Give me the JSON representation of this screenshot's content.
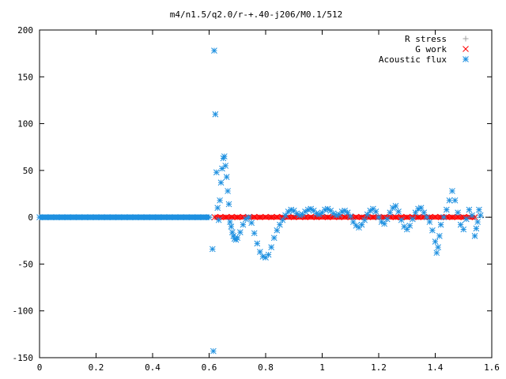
{
  "chart_data": {
    "type": "scatter",
    "title": "m4/n1.5/q2.0/r-+.40-j206/M0.1/512",
    "xlabel": "",
    "ylabel": "",
    "xlim": [
      0,
      1.6
    ],
    "ylim": [
      -150,
      200
    ],
    "x_ticks": [
      0,
      0.2,
      0.4,
      0.6,
      0.8,
      1,
      1.2,
      1.4,
      1.6
    ],
    "x_tick_labels": [
      "0",
      "0.2",
      "0.4",
      "0.6",
      "0.8",
      "1",
      "1.2",
      "1.4",
      "1.6"
    ],
    "y_ticks": [
      -150,
      -100,
      -50,
      0,
      50,
      100,
      150,
      200
    ],
    "y_tick_labels": [
      "-150",
      "-100",
      "-50",
      "0",
      "50",
      "100",
      "150",
      "200"
    ],
    "grid": false,
    "legend_position": "top-right",
    "series": [
      {
        "name": "R stress",
        "marker": "+",
        "color": "#a0a0a0",
        "points": [
          [
            0.62,
            0
          ],
          [
            0.66,
            0
          ],
          [
            0.7,
            0
          ],
          [
            0.74,
            0
          ],
          [
            0.78,
            0
          ],
          [
            0.82,
            0
          ],
          [
            0.86,
            0
          ],
          [
            0.9,
            0
          ],
          [
            0.94,
            0
          ],
          [
            0.98,
            0
          ],
          [
            1.02,
            0
          ],
          [
            1.06,
            0
          ],
          [
            1.1,
            0
          ],
          [
            1.14,
            0
          ],
          [
            1.18,
            0
          ],
          [
            1.22,
            0
          ],
          [
            1.26,
            0
          ],
          [
            1.3,
            0
          ],
          [
            1.34,
            0
          ],
          [
            1.38,
            0
          ],
          [
            1.42,
            0
          ],
          [
            1.46,
            0
          ],
          [
            1.5,
            0
          ],
          [
            1.54,
            0
          ]
        ]
      },
      {
        "name": "G work",
        "marker": "x",
        "color": "#ff0000",
        "points": [
          [
            0.62,
            0
          ],
          [
            0.64,
            0.5
          ],
          [
            0.66,
            0
          ],
          [
            0.68,
            0.5
          ],
          [
            0.7,
            0
          ],
          [
            0.72,
            0.5
          ],
          [
            0.74,
            0
          ],
          [
            0.76,
            0.5
          ],
          [
            0.78,
            0
          ],
          [
            0.8,
            0.5
          ],
          [
            0.82,
            0
          ],
          [
            0.84,
            0.5
          ],
          [
            0.86,
            0
          ],
          [
            0.88,
            0.5
          ],
          [
            0.9,
            0
          ],
          [
            0.92,
            0.5
          ],
          [
            0.94,
            0
          ],
          [
            0.96,
            0.5
          ],
          [
            0.98,
            0
          ],
          [
            1.0,
            0.5
          ],
          [
            1.02,
            0
          ],
          [
            1.04,
            0.5
          ],
          [
            1.06,
            0
          ],
          [
            1.08,
            0.5
          ],
          [
            1.1,
            0
          ],
          [
            1.12,
            0.5
          ],
          [
            1.14,
            0
          ],
          [
            1.16,
            0.5
          ],
          [
            1.18,
            0
          ],
          [
            1.2,
            0.5
          ],
          [
            1.22,
            0
          ],
          [
            1.24,
            0.5
          ],
          [
            1.26,
            0
          ],
          [
            1.28,
            0.5
          ],
          [
            1.3,
            0
          ],
          [
            1.32,
            0.5
          ],
          [
            1.34,
            0
          ],
          [
            1.36,
            0.5
          ],
          [
            1.38,
            0
          ],
          [
            1.4,
            0.5
          ],
          [
            1.42,
            0
          ],
          [
            1.44,
            0.5
          ],
          [
            1.46,
            0
          ],
          [
            1.48,
            0.5
          ],
          [
            1.5,
            0
          ],
          [
            1.52,
            0.5
          ],
          [
            1.54,
            0
          ]
        ]
      },
      {
        "name": "Acoustic flux",
        "marker": "*",
        "color": "#1e90e0",
        "points": [
          [
            0,
            0
          ],
          [
            0.02,
            0
          ],
          [
            0.04,
            0
          ],
          [
            0.06,
            0
          ],
          [
            0.08,
            0
          ],
          [
            0.1,
            0
          ],
          [
            0.12,
            0
          ],
          [
            0.14,
            0
          ],
          [
            0.16,
            0
          ],
          [
            0.18,
            0
          ],
          [
            0.2,
            0
          ],
          [
            0.22,
            0
          ],
          [
            0.24,
            0
          ],
          [
            0.26,
            0
          ],
          [
            0.28,
            0
          ],
          [
            0.3,
            0
          ],
          [
            0.32,
            0
          ],
          [
            0.34,
            0
          ],
          [
            0.36,
            0
          ],
          [
            0.38,
            0
          ],
          [
            0.4,
            0
          ],
          [
            0.42,
            0
          ],
          [
            0.44,
            0
          ],
          [
            0.46,
            0
          ],
          [
            0.48,
            0
          ],
          [
            0.5,
            0
          ],
          [
            0.52,
            0
          ],
          [
            0.54,
            0
          ],
          [
            0.56,
            0
          ],
          [
            0.58,
            0
          ],
          [
            0.6,
            0
          ],
          [
            0.612,
            -34
          ],
          [
            0.615,
            -143
          ],
          [
            0.618,
            178
          ],
          [
            0.622,
            110
          ],
          [
            0.626,
            48
          ],
          [
            0.63,
            10
          ],
          [
            0.634,
            -3
          ],
          [
            0.638,
            18
          ],
          [
            0.642,
            37
          ],
          [
            0.646,
            52
          ],
          [
            0.65,
            63
          ],
          [
            0.654,
            65
          ],
          [
            0.658,
            55
          ],
          [
            0.662,
            43
          ],
          [
            0.666,
            28
          ],
          [
            0.67,
            14
          ],
          [
            0.674,
            -5
          ],
          [
            0.678,
            -10
          ],
          [
            0.682,
            -16
          ],
          [
            0.686,
            -20
          ],
          [
            0.69,
            -23
          ],
          [
            0.695,
            -24
          ],
          [
            0.7,
            -22
          ],
          [
            0.71,
            -16
          ],
          [
            0.72,
            -8
          ],
          [
            0.73,
            -2
          ],
          [
            0.74,
            0
          ],
          [
            0.75,
            -6
          ],
          [
            0.76,
            -17
          ],
          [
            0.77,
            -28
          ],
          [
            0.78,
            -37
          ],
          [
            0.79,
            -42
          ],
          [
            0.8,
            -43
          ],
          [
            0.81,
            -40
          ],
          [
            0.82,
            -32
          ],
          [
            0.83,
            -22
          ],
          [
            0.84,
            -14
          ],
          [
            0.85,
            -8
          ],
          [
            0.86,
            -3
          ],
          [
            0.87,
            2
          ],
          [
            0.88,
            6
          ],
          [
            0.89,
            8
          ],
          [
            0.9,
            7
          ],
          [
            0.91,
            4
          ],
          [
            0.92,
            2
          ],
          [
            0.93,
            3
          ],
          [
            0.94,
            6
          ],
          [
            0.95,
            8
          ],
          [
            0.96,
            9
          ],
          [
            0.97,
            7
          ],
          [
            0.98,
            4
          ],
          [
            0.99,
            3
          ],
          [
            1.0,
            5
          ],
          [
            1.01,
            8
          ],
          [
            1.02,
            9
          ],
          [
            1.03,
            7
          ],
          [
            1.04,
            4
          ],
          [
            1.05,
            2
          ],
          [
            1.06,
            3
          ],
          [
            1.07,
            6
          ],
          [
            1.08,
            7
          ],
          [
            1.09,
            5
          ],
          [
            1.1,
            1
          ],
          [
            1.11,
            -5
          ],
          [
            1.12,
            -9
          ],
          [
            1.13,
            -11
          ],
          [
            1.14,
            -8
          ],
          [
            1.15,
            -3
          ],
          [
            1.16,
            3
          ],
          [
            1.17,
            7
          ],
          [
            1.18,
            9
          ],
          [
            1.19,
            6
          ],
          [
            1.2,
            0
          ],
          [
            1.21,
            -5
          ],
          [
            1.22,
            -7
          ],
          [
            1.23,
            -2
          ],
          [
            1.24,
            5
          ],
          [
            1.25,
            10
          ],
          [
            1.26,
            12
          ],
          [
            1.27,
            6
          ],
          [
            1.28,
            -3
          ],
          [
            1.29,
            -10
          ],
          [
            1.3,
            -13
          ],
          [
            1.31,
            -9
          ],
          [
            1.32,
            -2
          ],
          [
            1.33,
            5
          ],
          [
            1.34,
            9
          ],
          [
            1.35,
            10
          ],
          [
            1.36,
            5
          ],
          [
            1.37,
            0
          ],
          [
            1.38,
            -5
          ],
          [
            1.39,
            -14
          ],
          [
            1.4,
            -26
          ],
          [
            1.405,
            -38
          ],
          [
            1.41,
            -32
          ],
          [
            1.415,
            -20
          ],
          [
            1.42,
            -8
          ],
          [
            1.43,
            0
          ],
          [
            1.44,
            8
          ],
          [
            1.45,
            18
          ],
          [
            1.46,
            28
          ],
          [
            1.47,
            18
          ],
          [
            1.48,
            5
          ],
          [
            1.49,
            -8
          ],
          [
            1.5,
            -13
          ],
          [
            1.51,
            -2
          ],
          [
            1.52,
            8
          ],
          [
            1.53,
            2
          ],
          [
            1.54,
            -20
          ],
          [
            1.545,
            -12
          ],
          [
            1.55,
            -5
          ],
          [
            1.555,
            8
          ],
          [
            1.56,
            2
          ]
        ]
      }
    ]
  }
}
